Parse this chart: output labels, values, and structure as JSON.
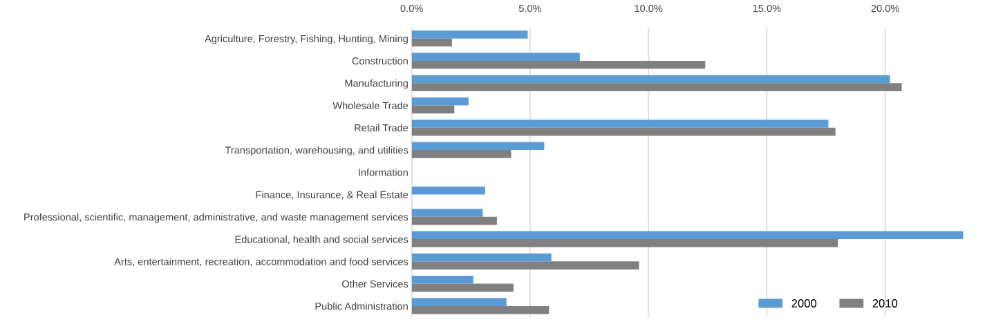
{
  "chart_data": {
    "type": "bar",
    "orientation": "horizontal",
    "categories": [
      "Agriculture, Forestry, Fishing, Hunting, Mining",
      "Construction",
      "Manufacturing",
      "Wholesale Trade",
      "Retail Trade",
      "Transportation, warehousing, and utilities",
      "Information",
      "Finance, Insurance, & Real Estate",
      "Professional, scientific, management, administrative, and waste management services",
      "Educational, health and social services",
      "Arts, entertainment, recreation, accommodation and food services",
      "Other Services",
      "Public Administration"
    ],
    "series": [
      {
        "name": "2000",
        "color": "#5b9bd5",
        "values": [
          4.9,
          7.1,
          20.2,
          2.4,
          17.6,
          5.6,
          null,
          3.1,
          3.0,
          23.3,
          5.9,
          2.6,
          4.0
        ]
      },
      {
        "name": "2010",
        "color": "#808080",
        "values": [
          1.7,
          12.4,
          20.7,
          1.8,
          17.9,
          4.2,
          null,
          null,
          3.6,
          18.0,
          9.6,
          4.3,
          5.8
        ]
      }
    ],
    "xlim": [
      0,
      23.3
    ],
    "xticks": [
      {
        "value": 0,
        "label": "0.0%"
      },
      {
        "value": 5,
        "label": "5.0%"
      },
      {
        "value": 10,
        "label": "10.0%"
      },
      {
        "value": 15,
        "label": "15.0%"
      },
      {
        "value": 20,
        "label": "20.0%"
      }
    ],
    "grid": "x",
    "legend": "bottom right"
  }
}
